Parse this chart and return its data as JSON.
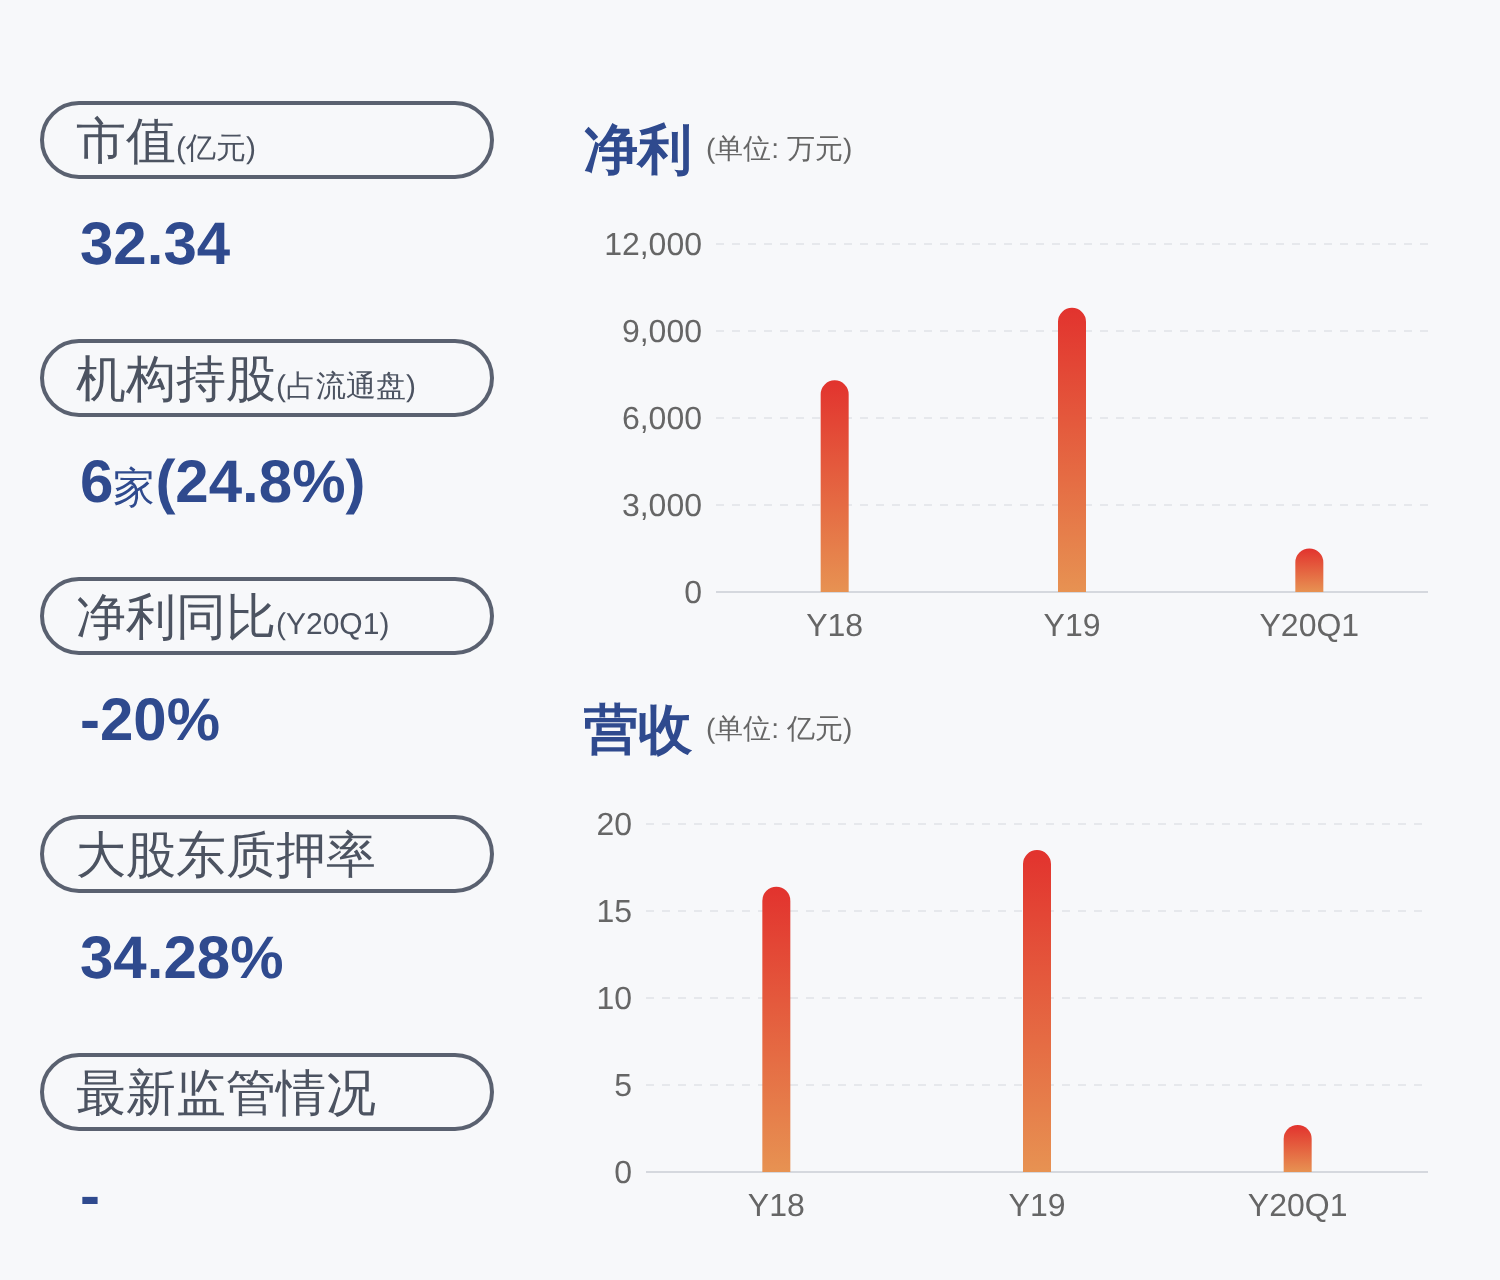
{
  "chart_data": [
    {
      "type": "other",
      "annotations": [
        "市值(亿元)",
        "32.34",
        "机构持股(占流通盘)",
        "6家(24.8%)",
        "净利同比(Y20Q1)",
        "-20%",
        "大股东质押率",
        "34.28%",
        "最新监管情况",
        "-"
      ]
    },
    {
      "type": "bar",
      "title": "净利",
      "subtitle": "(单位: 万元)",
      "categories": [
        "Y18",
        "Y19",
        "Y20Q1"
      ],
      "values": [
        7300,
        9800,
        1500
      ],
      "color": "#e2332e",
      "ylim": [
        0,
        12000
      ],
      "yticks": [
        0,
        {
          "value": 3000,
          "label": "3,000"
        },
        {
          "value": 6000,
          "label": "6,000"
        },
        {
          "value": 9000,
          "label": "9,000"
        },
        {
          "value": 12000,
          "label": "12,000"
        }
      ],
      "grid": "y"
    },
    {
      "type": "bar",
      "title": "营收",
      "subtitle": "(单位: 亿元)",
      "categories": [
        "Y18",
        "Y19",
        "Y20Q1"
      ],
      "values": [
        16.4,
        18.5,
        2.7
      ],
      "color": "#e2332e",
      "ylim": [
        0,
        20
      ],
      "yticks": [
        0,
        5,
        10,
        15,
        20
      ],
      "grid": "y"
    }
  ]
}
